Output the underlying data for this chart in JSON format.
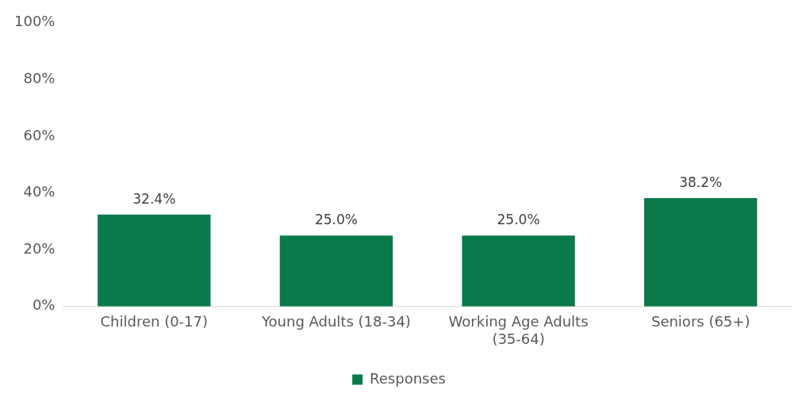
{
  "chart_data": {
    "type": "bar",
    "categories": [
      "Children (0-17)",
      "Young Adults (18-34)",
      "Working Age Adults (35-64)",
      "Seniors (65+)"
    ],
    "series": [
      {
        "name": "Responses",
        "color": "#0b7a4b",
        "values": [
          32.4,
          25.0,
          25.0,
          38.2
        ],
        "value_labels": [
          "32.4%",
          "25.0%",
          "25.0%",
          "38.2%"
        ]
      }
    ],
    "ylim": [
      0,
      100
    ],
    "yticks": [
      {
        "value": 0,
        "label": "0%"
      },
      {
        "value": 20,
        "label": "20%"
      },
      {
        "value": 40,
        "label": "40%"
      },
      {
        "value": 60,
        "label": "60%"
      },
      {
        "value": 80,
        "label": "80%"
      },
      {
        "value": 100,
        "label": "100%"
      }
    ],
    "grid": false,
    "legend": "bottom"
  }
}
